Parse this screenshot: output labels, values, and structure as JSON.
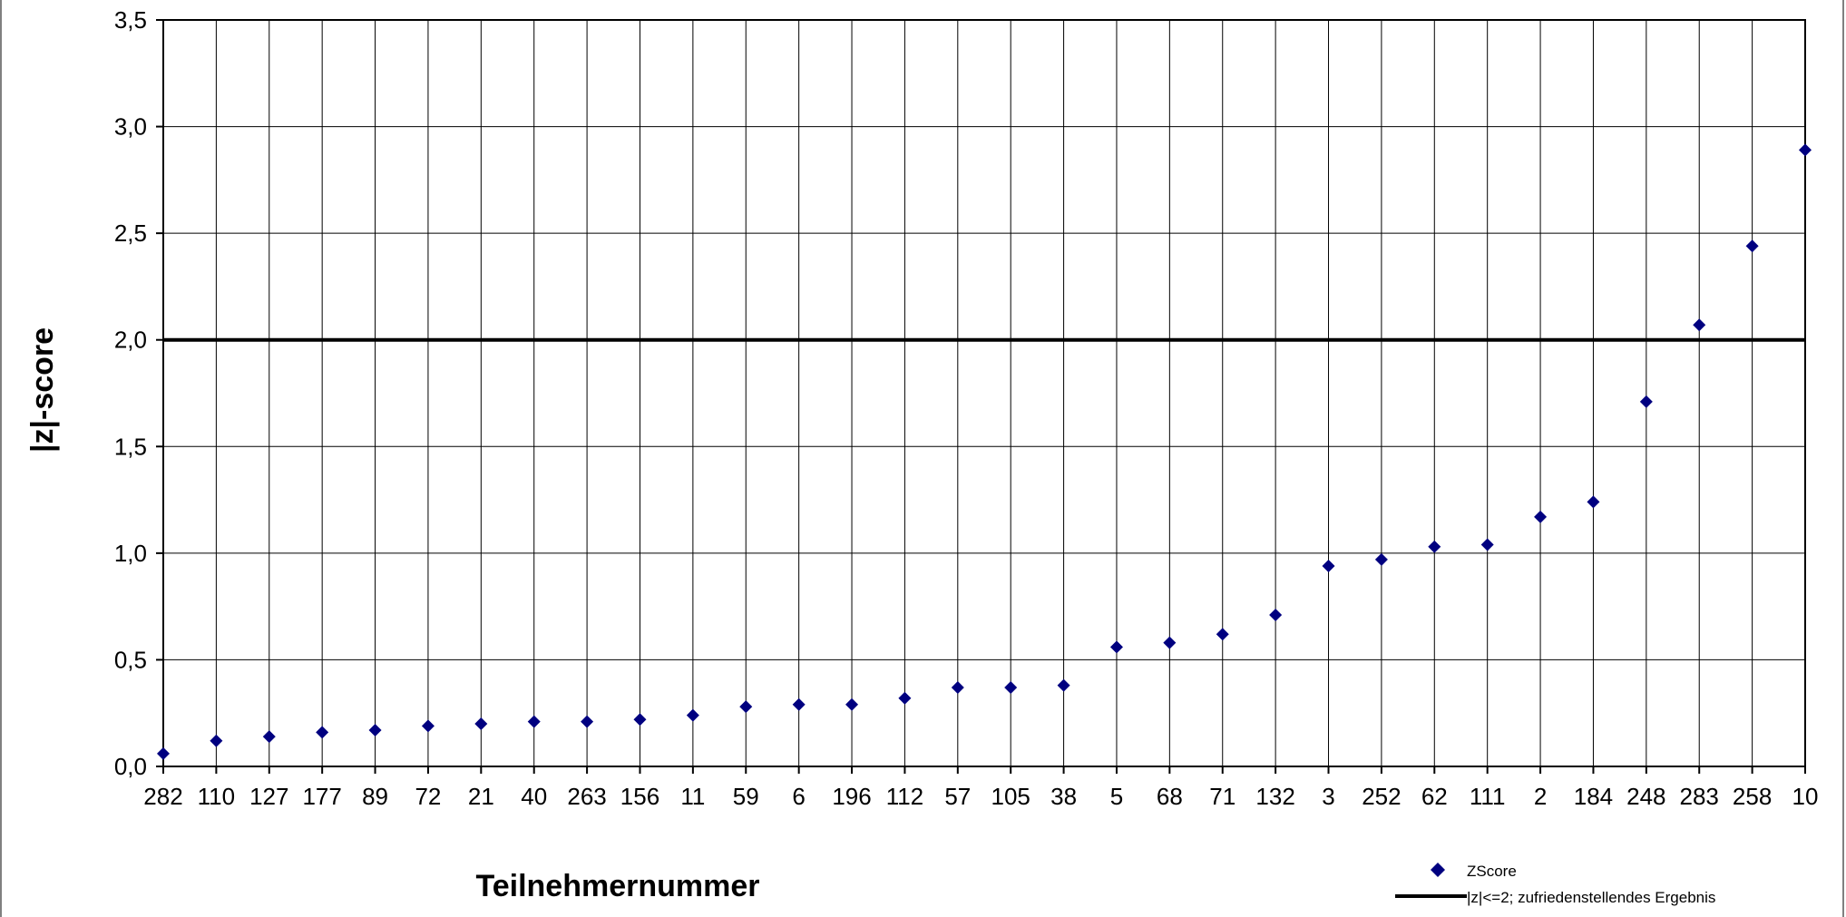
{
  "chart_data": {
    "type": "scatter",
    "title": "",
    "xlabel": "Teilnehmernummer",
    "ylabel": "|z|-score",
    "ylim": [
      0,
      3.5
    ],
    "y_ticks": [
      "0,0",
      "0,5",
      "1,0",
      "1,5",
      "2,0",
      "2,5",
      "3,0",
      "3,5"
    ],
    "grid": "on",
    "categories": [
      "282",
      "110",
      "127",
      "177",
      "89",
      "72",
      "21",
      "40",
      "263",
      "156",
      "11",
      "59",
      "6",
      "196",
      "112",
      "57",
      "105",
      "38",
      "5",
      "68",
      "71",
      "132",
      "3",
      "252",
      "62",
      "111",
      "2",
      "184",
      "248",
      "283",
      "258",
      "10"
    ],
    "series": [
      {
        "name": "ZScore",
        "marker": "diamond",
        "color": "#000080",
        "values": [
          0.06,
          0.12,
          0.14,
          0.16,
          0.17,
          0.19,
          0.2,
          0.21,
          0.21,
          0.22,
          0.24,
          0.28,
          0.29,
          0.29,
          0.32,
          0.37,
          0.37,
          0.38,
          0.56,
          0.58,
          0.62,
          0.71,
          0.94,
          0.97,
          1.03,
          1.04,
          1.17,
          1.24,
          1.71,
          2.07,
          2.44,
          2.89
        ]
      },
      {
        "name": "|z|<=2; zufriedenstellendes Ergebnis",
        "type": "reference_line",
        "color": "#000000",
        "y": 2.0
      }
    ],
    "legend_position": "bottom-right"
  }
}
